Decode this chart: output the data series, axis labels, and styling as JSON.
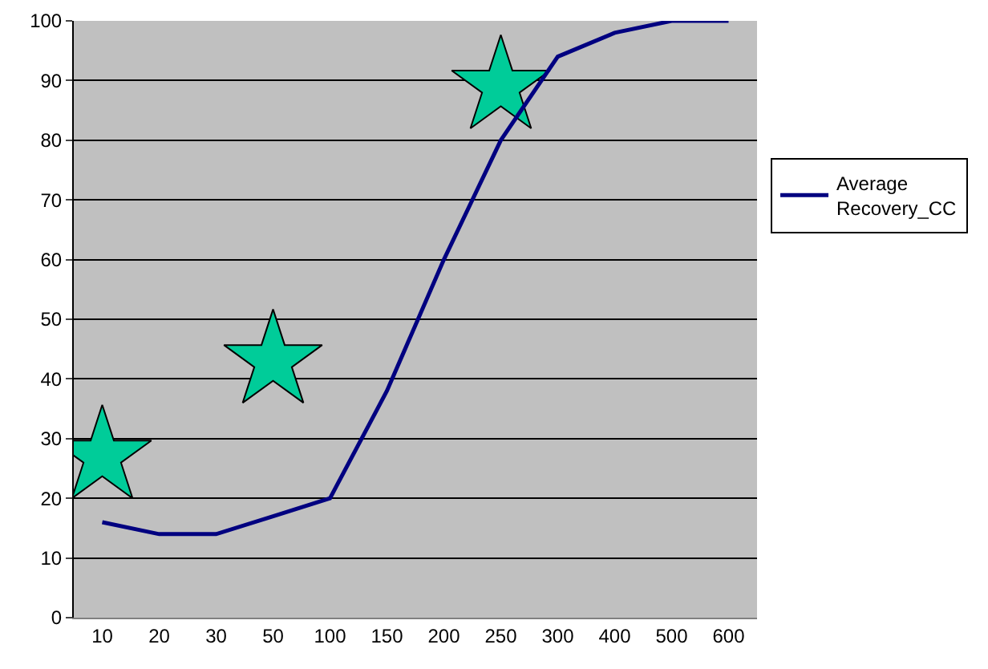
{
  "chart_data": {
    "type": "line",
    "categories": [
      "10",
      "20",
      "30",
      "50",
      "100",
      "150",
      "200",
      "250",
      "300",
      "400",
      "500",
      "600"
    ],
    "series": [
      {
        "type": "scatter",
        "color": "#00cc99",
        "marker": "star",
        "x": [
          "10",
          "50",
          "250"
        ],
        "values": [
          27,
          43,
          89
        ]
      },
      {
        "name": "Average Recovery_CC",
        "color": "#000080",
        "values": [
          16,
          14,
          14,
          17,
          20,
          38,
          60,
          80,
          94,
          98,
          100,
          100
        ]
      }
    ],
    "ylim": [
      0,
      100
    ],
    "yticks": [
      0,
      10,
      20,
      30,
      40,
      50,
      60,
      70,
      80,
      90,
      100
    ],
    "grid": "y",
    "legend": "right",
    "marker": "none",
    "line_style": "solid"
  }
}
